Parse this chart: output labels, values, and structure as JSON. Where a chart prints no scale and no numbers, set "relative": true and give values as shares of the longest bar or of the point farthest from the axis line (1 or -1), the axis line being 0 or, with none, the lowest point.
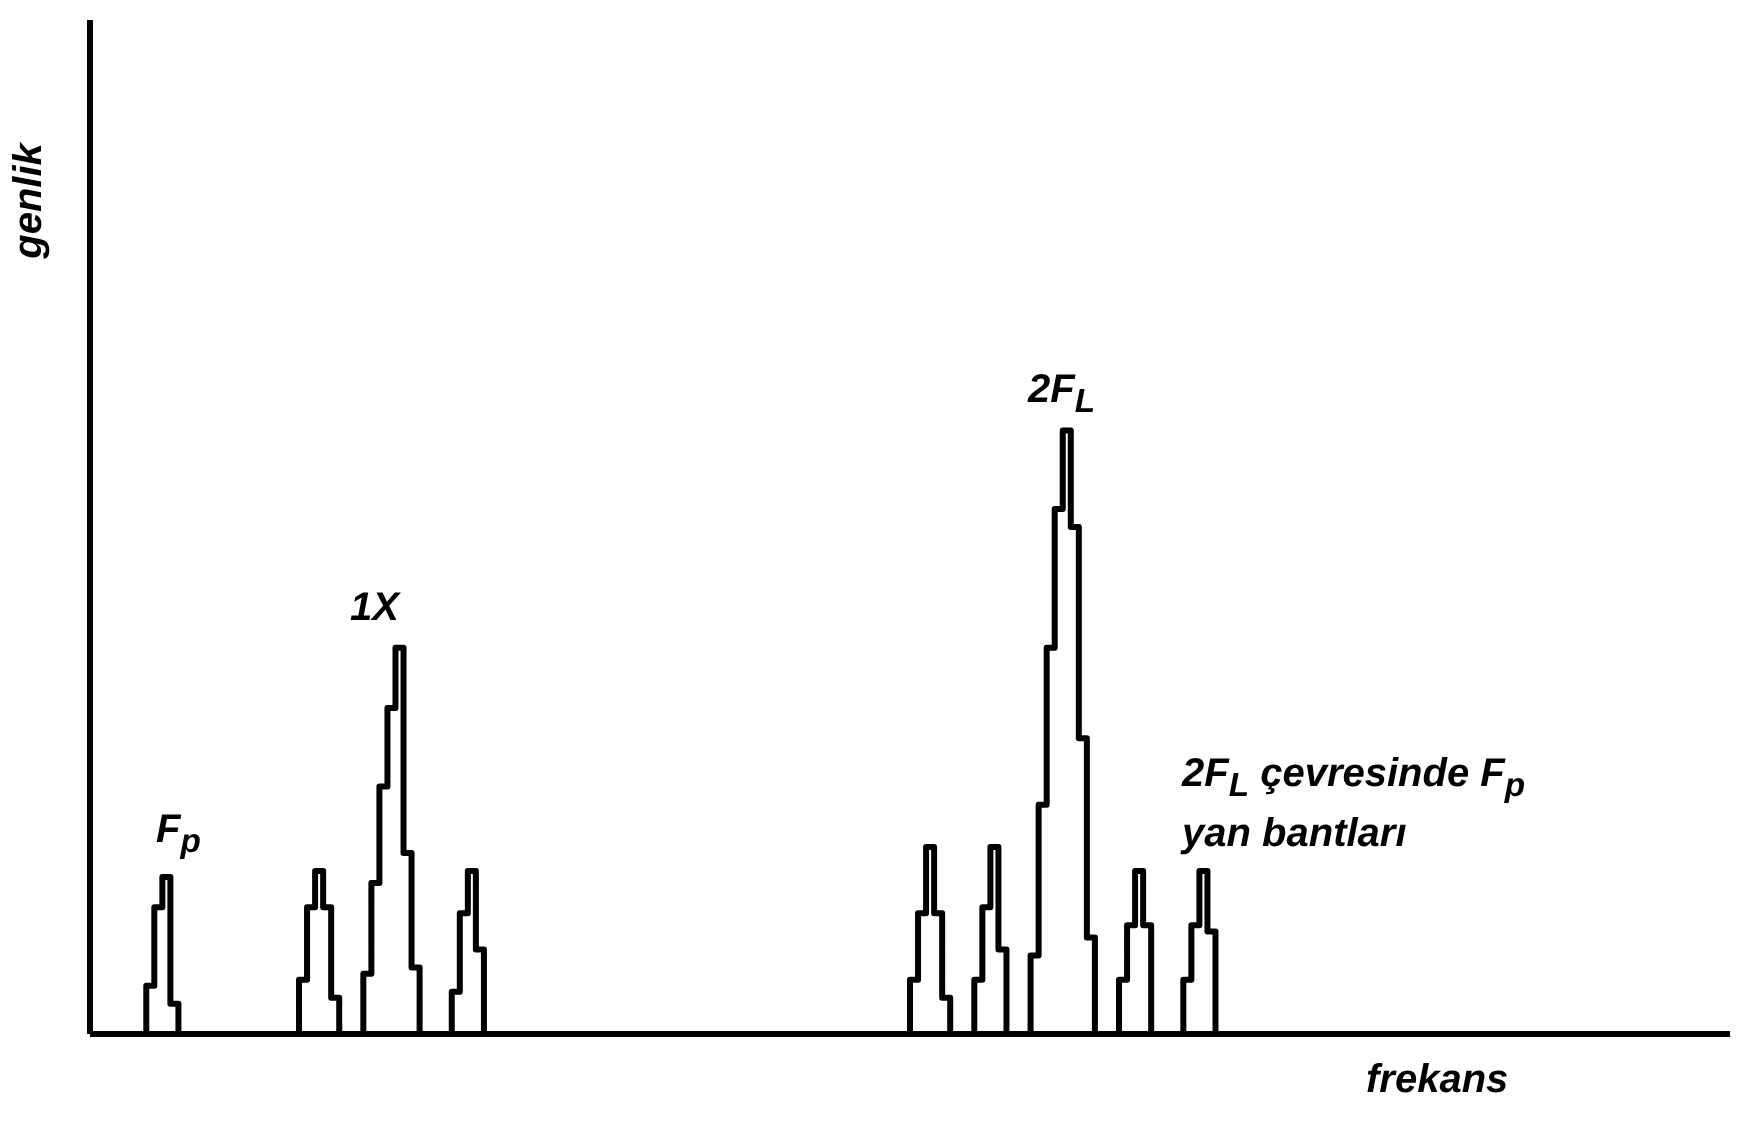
{
  "chart_data": {
    "type": "step",
    "relative": true,
    "xlabel": "frekans",
    "ylabel": "genlik",
    "annotations": [
      "F$_{p}$",
      "1X",
      "2F$_{L}$",
      "2F$_{L}$ çevresinde F$_{p}$ yan bantları"
    ],
    "color": "#000000",
    "categories": [
      null,
      null,
      null,
      null,
      null,
      null,
      null,
      null,
      null,
      null,
      null,
      null,
      null,
      null,
      null,
      null,
      null,
      null,
      null,
      null,
      null,
      null,
      null,
      null,
      null,
      null,
      null,
      null,
      null,
      null,
      null,
      null,
      null,
      null,
      null,
      null,
      null,
      null,
      null,
      null,
      null,
      null,
      null,
      null,
      null,
      null,
      null,
      null,
      null,
      null,
      null,
      null,
      null,
      null,
      null,
      null,
      null,
      null,
      null,
      null,
      null,
      null,
      null,
      null,
      null,
      null,
      null,
      null,
      null,
      null,
      null,
      null,
      null,
      null,
      null,
      null,
      null,
      null,
      null,
      null,
      null,
      null,
      null,
      null,
      null,
      null,
      null,
      null,
      null,
      null,
      null,
      null,
      null,
      null,
      null,
      null,
      null,
      null,
      null,
      null,
      null,
      null,
      null,
      null,
      null,
      null,
      null,
      null,
      null,
      null,
      null,
      null,
      null,
      null,
      null,
      null,
      null,
      null,
      null,
      null,
      null,
      null,
      null,
      null,
      null,
      null,
      null,
      null,
      null,
      null,
      null,
      null,
      null,
      null,
      null,
      null,
      null,
      null,
      null,
      null,
      null,
      null,
      null,
      null,
      null,
      null,
      null,
      null,
      null,
      null,
      null,
      null,
      null,
      null,
      null,
      null,
      null,
      null,
      null,
      null,
      null,
      null,
      null,
      null,
      null,
      null,
      null,
      null,
      null,
      null,
      null,
      null,
      null,
      null,
      null,
      null,
      null,
      null,
      null,
      null,
      null,
      null,
      null,
      null,
      null,
      null,
      null,
      null,
      null,
      null,
      null,
      null,
      null,
      null,
      null,
      null,
      null,
      null,
      null,
      null,
      null,
      null,
      null,
      null,
      null
    ],
    "values": [
      0,
      0,
      0,
      0,
      0,
      0,
      0,
      0.08,
      0.21,
      0.26,
      0.05,
      0,
      0,
      0,
      0,
      0,
      0,
      0,
      0,
      0,
      0,
      0,
      0,
      0,
      0,
      0,
      0.09,
      0.21,
      0.27,
      0.21,
      0.06,
      0,
      0,
      0,
      0.1,
      0.25,
      0.41,
      0.54,
      0.64,
      0.3,
      0.11,
      0,
      0,
      0,
      0,
      0.07,
      0.2,
      0.27,
      0.14,
      0,
      0,
      0,
      0,
      0,
      0,
      0,
      0,
      0,
      0,
      0,
      0,
      0,
      0,
      0,
      0,
      0,
      0,
      0,
      0,
      0,
      0,
      0,
      0,
      0,
      0,
      0,
      0,
      0,
      0,
      0,
      0,
      0,
      0,
      0,
      0,
      0,
      0,
      0,
      0,
      0,
      0,
      0,
      0,
      0,
      0,
      0,
      0,
      0,
      0,
      0,
      0,
      0,
      0.09,
      0.2,
      0.31,
      0.2,
      0.06,
      0,
      0,
      0,
      0.09,
      0.21,
      0.31,
      0.14,
      0,
      0,
      0,
      0.13,
      0.38,
      0.64,
      0.87,
      1,
      0.84,
      0.49,
      0.16,
      0,
      0,
      0,
      0.09,
      0.18,
      0.27,
      0.18,
      0,
      0,
      0,
      0,
      0.09,
      0.18,
      0.27,
      0.17,
      0,
      0,
      0,
      0,
      0,
      0,
      0,
      0,
      0,
      0,
      0,
      0,
      0,
      0,
      0,
      0,
      0,
      0,
      0,
      0,
      0,
      0,
      0,
      0,
      0,
      0,
      0,
      0,
      0,
      0,
      0,
      0,
      0,
      0,
      0,
      0,
      0,
      0,
      0,
      0,
      0,
      0,
      0,
      0,
      0,
      0,
      0,
      0,
      0,
      0,
      0,
      0,
      0,
      0,
      0,
      0,
      0,
      0,
      0,
      0,
      0,
      0,
      0,
      0,
      0
    ]
  }
}
